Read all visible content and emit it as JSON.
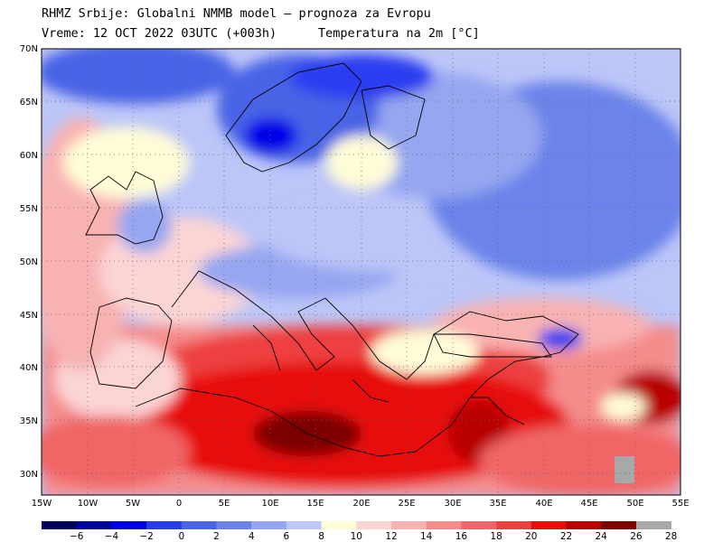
{
  "header": {
    "title_line1": "RHMZ Srbije: Globalni NMMB model — prognoza za Evropu",
    "title_line2": "Vreme: 12 OCT 2022 03UTC (+003h)",
    "title_line3": "Temperatura na 2m [°C]"
  },
  "map": {
    "lat_labels": [
      "70N",
      "65N",
      "60N",
      "55N",
      "50N",
      "45N",
      "40N",
      "35N",
      "30N"
    ],
    "lon_labels": [
      "15W",
      "10W",
      "5W",
      "0",
      "5E",
      "10E",
      "15E",
      "20E",
      "25E",
      "30E",
      "35E",
      "40E",
      "45E",
      "50E",
      "55E"
    ]
  },
  "colorbar": {
    "labels": [
      "−6",
      "−4",
      "−2",
      "0",
      "2",
      "4",
      "6",
      "8",
      "10",
      "12",
      "14",
      "16",
      "18",
      "20",
      "22",
      "24",
      "26",
      "28"
    ],
    "colors": [
      "#00005a",
      "#00009c",
      "#0000e6",
      "#2a3cf0",
      "#4a64e6",
      "#6c84ea",
      "#96a6f0",
      "#bcc6f8",
      "#fffcd8",
      "#fbd4d4",
      "#f8b2b2",
      "#f48c8c",
      "#f06666",
      "#ee4040",
      "#e80c0c",
      "#b80000",
      "#7c0000",
      "#a8a8a8"
    ]
  }
}
